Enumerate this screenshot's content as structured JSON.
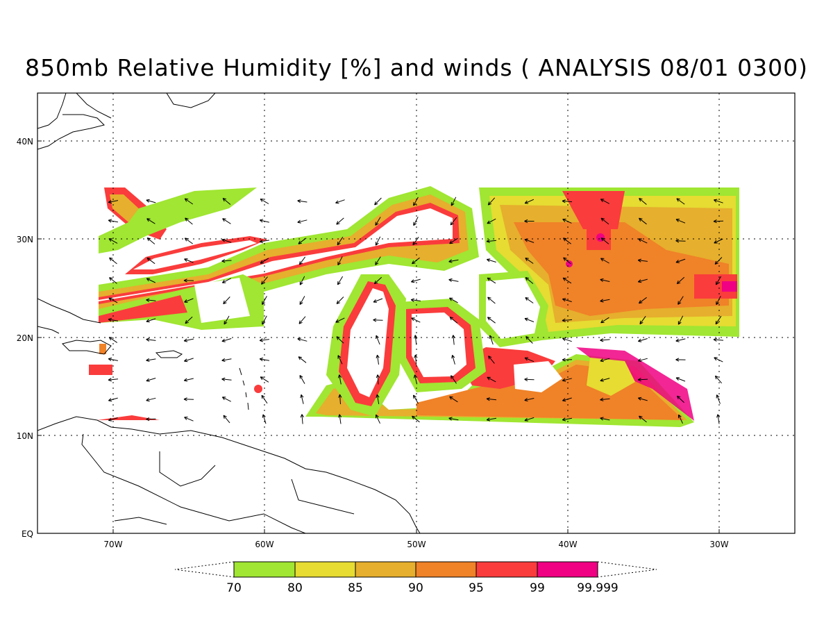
{
  "title": "850mb Relative Humidity [%] and winds ( ANALYSIS 08/01 0300)",
  "lat_labels": [
    "40N",
    "30N",
    "20N",
    "10N",
    "EQ"
  ],
  "lon_labels": [
    "70W",
    "60W",
    "50W",
    "40W",
    "30W"
  ],
  "colorbar": {
    "colors": [
      "#a0e632",
      "#e6dc32",
      "#e6af2d",
      "#f08228",
      "#fa3c3c",
      "#f00082"
    ],
    "labels": [
      "70",
      "80",
      "85",
      "90",
      "95",
      "99",
      "99.999"
    ]
  },
  "colors": {
    "land_outline": "#000000",
    "grid": "#000000"
  }
}
